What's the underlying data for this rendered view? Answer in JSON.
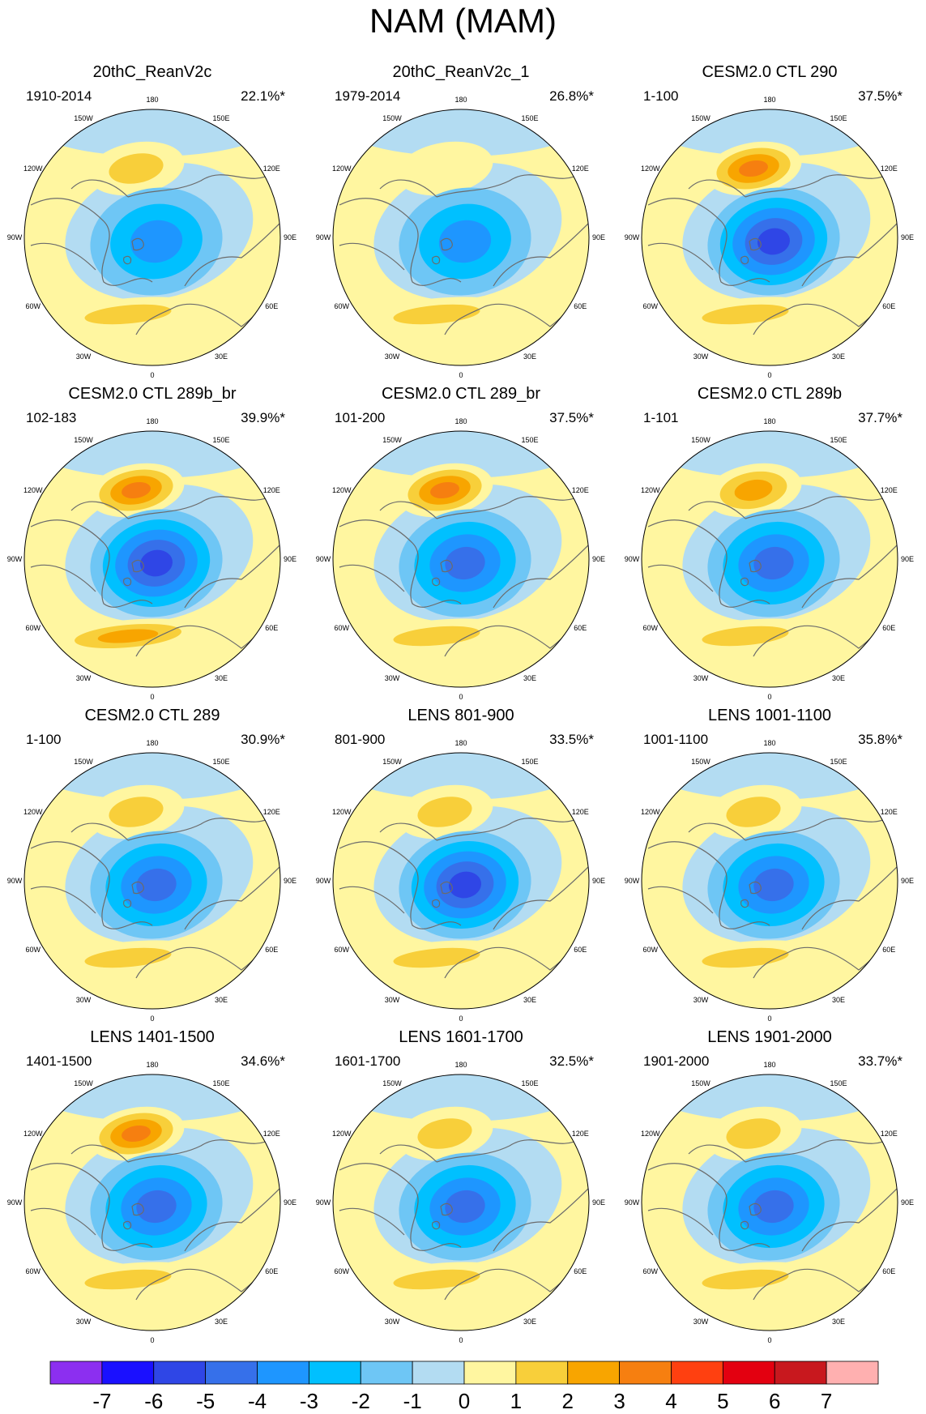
{
  "title": "NAM (MAM)",
  "colors": {
    "coast": "#6b6b6b",
    "levels": [
      "#8c2ff0",
      "#1a10ff",
      "#2f46e6",
      "#3670ea",
      "#1e96ff",
      "#00c0ff",
      "#6ec6f5",
      "#b3dcf2",
      "#fff6a0",
      "#f8cf3a",
      "#f8a500",
      "#f67f10",
      "#ff4010",
      "#e30010",
      "#c8181e",
      "#ffb0b0"
    ]
  },
  "colorbar": {
    "labels": [
      "-7",
      "-6",
      "-5",
      "-4",
      "-3",
      "-2",
      "-1",
      "0",
      "1",
      "2",
      "3",
      "4",
      "5",
      "6",
      "7"
    ]
  },
  "longitude_labels": [
    "180",
    "150E",
    "120E",
    "90E",
    "60E",
    "30E",
    "0",
    "30W",
    "60W",
    "90W",
    "120W",
    "150W"
  ],
  "panels": [
    {
      "title": "20thC_ReanV2c",
      "period": "1910-2014",
      "variance": "22.1%*",
      "center_level": -4,
      "pac_level": 2,
      "atl_level": 2
    },
    {
      "title": "20thC_ReanV2c_1",
      "period": "1979-2014",
      "variance": "26.8%*",
      "center_level": -4,
      "pac_level": 1,
      "atl_level": 2
    },
    {
      "title": "CESM2.0 CTL 290",
      "period": "1-100",
      "variance": "37.5%*",
      "center_level": -6,
      "pac_level": 4,
      "atl_level": 2
    },
    {
      "title": "CESM2.0 CTL 289b_br",
      "period": "102-183",
      "variance": "39.9%*",
      "center_level": -6,
      "pac_level": 4,
      "atl_level": 3
    },
    {
      "title": "CESM2.0 CTL 289_br",
      "period": "101-200",
      "variance": "37.5%*",
      "center_level": -5,
      "pac_level": 4,
      "atl_level": 2
    },
    {
      "title": "CESM2.0 CTL 289b",
      "period": "1-101",
      "variance": "37.7%*",
      "center_level": -5,
      "pac_level": 3,
      "atl_level": 2
    },
    {
      "title": "CESM2.0 CTL 289",
      "period": "1-100",
      "variance": "30.9%*",
      "center_level": -5,
      "pac_level": 2,
      "atl_level": 2
    },
    {
      "title": "LENS 801-900",
      "period": "801-900",
      "variance": "33.5%*",
      "center_level": -6,
      "pac_level": 2,
      "atl_level": 2
    },
    {
      "title": "LENS 1001-1100",
      "period": "1001-1100",
      "variance": "35.8%*",
      "center_level": -5,
      "pac_level": 2,
      "atl_level": 2
    },
    {
      "title": "LENS 1401-1500",
      "period": "1401-1500",
      "variance": "34.6%*",
      "center_level": -5,
      "pac_level": 4,
      "atl_level": 2
    },
    {
      "title": "LENS 1601-1700",
      "period": "1601-1700",
      "variance": "32.5%*",
      "center_level": -5,
      "pac_level": 2,
      "atl_level": 2
    },
    {
      "title": "LENS 1901-2000",
      "period": "1901-2000",
      "variance": "33.7%*",
      "center_level": -5,
      "pac_level": 2,
      "atl_level": 2
    }
  ]
}
